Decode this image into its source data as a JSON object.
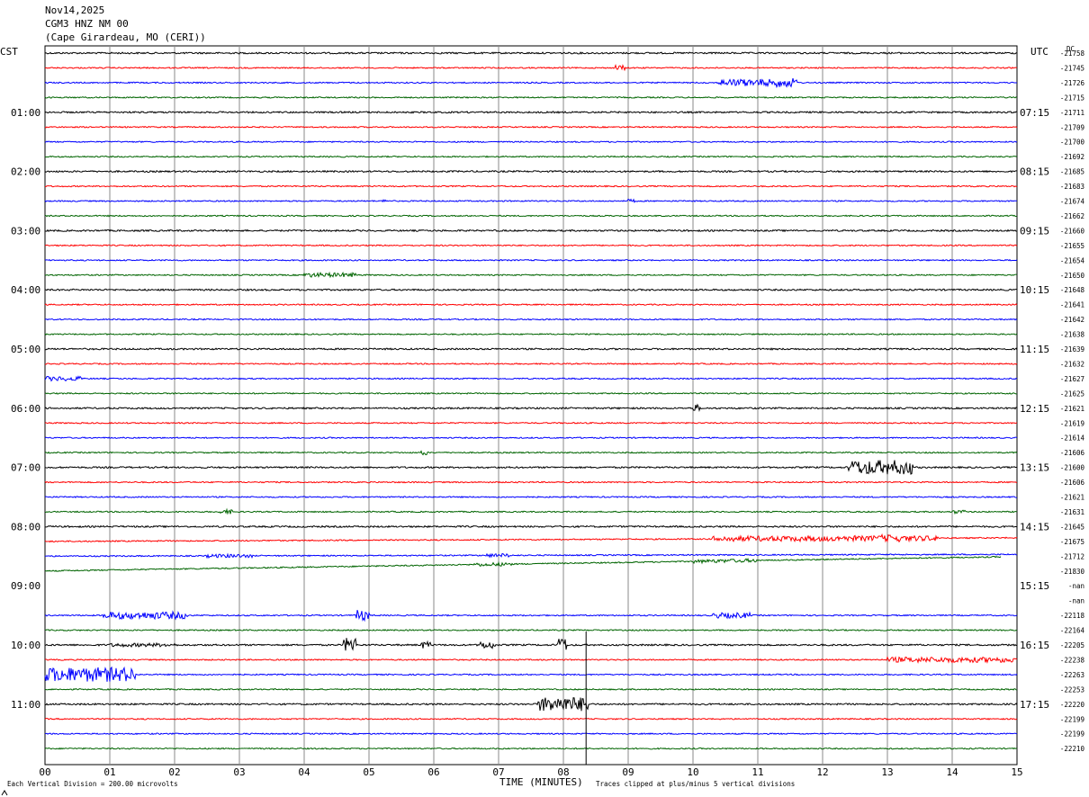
{
  "header": {
    "date": "Nov14,2025",
    "station": "CGM3 HNZ NM 00",
    "location": "(Cape Girardeau, MO (CERI))"
  },
  "labels": {
    "left_zone": "CST",
    "right_zone": "UTC",
    "dc_heading": "DC"
  },
  "footer": {
    "scale_note": "Each Vertical Division =  200.00 microvolts",
    "clip_note": "Traces clipped at plus/minus 5 vertical divisions"
  },
  "chart_data": {
    "type": "line",
    "subtype": "helicorder",
    "title": "CGM3 HNZ NM 00",
    "xlabel": "TIME (MINUTES)",
    "ylabel": "",
    "xlim": [
      0,
      15
    ],
    "x_ticks": [
      "00",
      "01",
      "02",
      "03",
      "04",
      "05",
      "06",
      "07",
      "08",
      "09",
      "10",
      "11",
      "12",
      "13",
      "14",
      "15"
    ],
    "grid": true,
    "trace_colors": [
      "#000000",
      "#ff0000",
      "#0000ff",
      "#006400"
    ],
    "left_time_labels": [
      "01:00",
      "02:00",
      "03:00",
      "04:00",
      "05:00",
      "06:00",
      "07:00",
      "08:00",
      "09:00",
      "10:00",
      "11:00"
    ],
    "right_time_labels": [
      "07:15",
      "08:15",
      "09:15",
      "10:15",
      "11:15",
      "12:15",
      "13:15",
      "14:15",
      "15:15",
      "16:15",
      "17:15"
    ],
    "dc_offsets": [
      "-21758",
      "-21745",
      "-21726",
      "-21715",
      "-21711",
      "-21709",
      "-21700",
      "-21692",
      "-21685",
      "-21683",
      "-21674",
      "-21662",
      "-21660",
      "-21655",
      "-21654",
      "-21650",
      "-21648",
      "-21641",
      "-21642",
      "-21638",
      "-21639",
      "-21632",
      "-21627",
      "-21625",
      "-21621",
      "-21619",
      "-21614",
      "-21606",
      "-21600",
      "-21606",
      "-21621",
      "-21631",
      "-21645",
      "-21675",
      "-21712",
      "-21830",
      "-nan",
      "-nan",
      "-22118",
      "-22164",
      "-22205",
      "-22238",
      "-22263",
      "-22253",
      "-22220",
      "-22199",
      "-22199",
      "-22210"
    ]
  }
}
